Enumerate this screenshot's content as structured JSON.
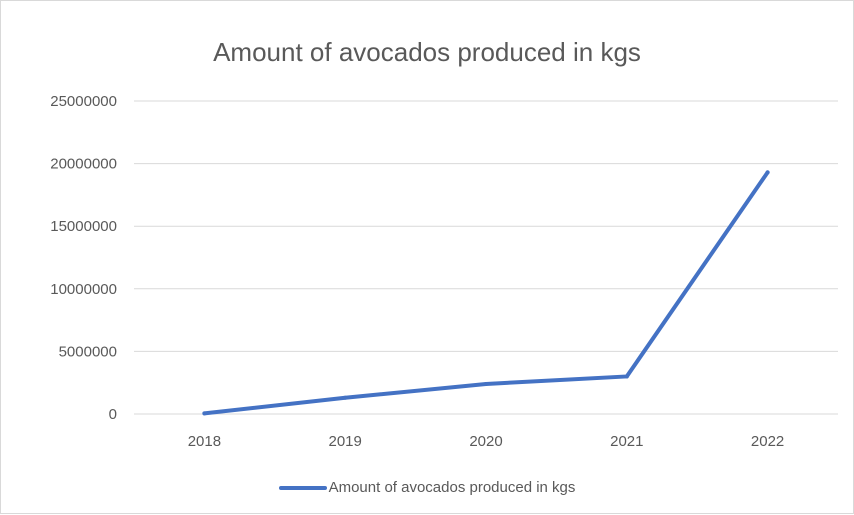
{
  "chart_data": {
    "type": "line",
    "title": "Amount of avocados produced in kgs",
    "xlabel": "",
    "ylabel": "",
    "categories": [
      "2018",
      "2019",
      "2020",
      "2021",
      "2022"
    ],
    "series": [
      {
        "name": "Amount of avocados produced in kgs",
        "values": [
          50000,
          1300000,
          2400000,
          3000000,
          19300000
        ],
        "color": "#4472c4"
      }
    ],
    "ylim": [
      0,
      25000000
    ],
    "yticks": [
      "0",
      "5000000",
      "10000000",
      "15000000",
      "20000000",
      "25000000"
    ],
    "grid": true,
    "legend_position": "bottom"
  }
}
